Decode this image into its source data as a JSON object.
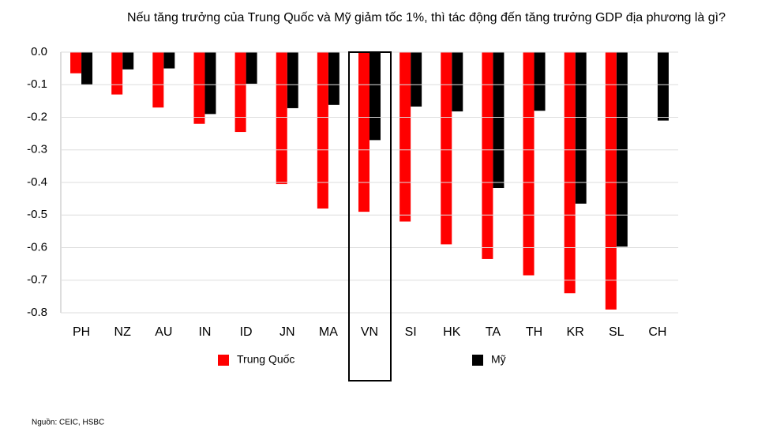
{
  "chart_data": {
    "type": "bar",
    "title": "Nếu tăng trưởng của Trung Quốc và Mỹ giảm tốc 1%, thì tác động đến tăng trưởng GDP địa phương là gì?",
    "categories": [
      "PH",
      "NZ",
      "AU",
      "IN",
      "ID",
      "JN",
      "MA",
      "VN",
      "SI",
      "HK",
      "TA",
      "TH",
      "KR",
      "SL",
      "CH"
    ],
    "series": [
      {
        "name": "Trung Quốc",
        "color": "#ff0000",
        "values": [
          -0.065,
          -0.13,
          -0.17,
          -0.22,
          -0.245,
          -0.405,
          -0.48,
          -0.49,
          -0.52,
          -0.59,
          -0.635,
          -0.685,
          -0.74,
          -0.79,
          null
        ]
      },
      {
        "name": "Mỹ",
        "color": "#000000",
        "values": [
          -0.1,
          -0.053,
          -0.05,
          -0.19,
          -0.097,
          -0.172,
          -0.162,
          -0.27,
          -0.167,
          -0.182,
          -0.417,
          -0.18,
          -0.465,
          -0.597,
          -0.21
        ]
      }
    ],
    "ylim": [
      -0.8,
      0
    ],
    "yticks": [
      {
        "value": 0,
        "label": "0.0"
      },
      -0.1,
      -0.2,
      -0.3,
      -0.4,
      -0.5,
      -0.6,
      -0.7,
      -0.8
    ],
    "grid": true,
    "legend": "bottom",
    "source": "Nguồn: CEIC, HSBC"
  }
}
